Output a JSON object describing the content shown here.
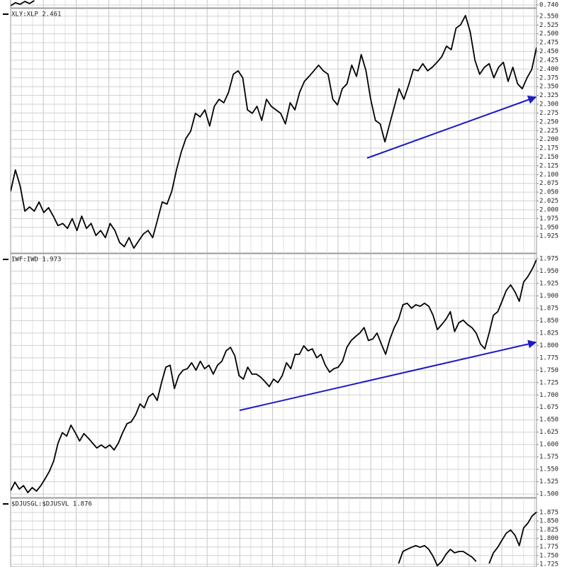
{
  "chart_data": [
    {
      "type": "line",
      "color": "#000000",
      "values": [
        0.7393,
        0.742,
        0.7406,
        0.7433,
        0.7413,
        0.744
      ],
      "ylim": [
        0.7373,
        0.7513
      ],
      "yticks": [
        {
          "value": 0.74,
          "label": "0.740"
        }
      ],
      "grid": true
    },
    {
      "type": "line",
      "title": "XLY:XLP 2.461",
      "color": "#000000",
      "values": [
        2.052,
        2.113,
        2.068,
        1.996,
        2.008,
        1.996,
        2.022,
        1.992,
        2.006,
        1.982,
        1.955,
        1.961,
        1.947,
        1.975,
        1.941,
        1.982,
        1.947,
        1.961,
        1.927,
        1.941,
        1.921,
        1.961,
        1.941,
        1.907,
        1.895,
        1.921,
        1.891,
        1.911,
        1.931,
        1.941,
        1.921,
        1.971,
        2.022,
        2.016,
        2.052,
        2.113,
        2.163,
        2.203,
        2.223,
        2.274,
        2.264,
        2.284,
        2.238,
        2.294,
        2.314,
        2.304,
        2.334,
        2.385,
        2.395,
        2.375,
        2.284,
        2.274,
        2.294,
        2.254,
        2.314,
        2.294,
        2.284,
        2.274,
        2.244,
        2.304,
        2.284,
        2.334,
        2.365,
        2.379,
        2.395,
        2.411,
        2.395,
        2.385,
        2.314,
        2.298,
        2.344,
        2.358,
        2.411,
        2.379,
        2.441,
        2.395,
        2.314,
        2.254,
        2.244,
        2.193,
        2.244,
        2.294,
        2.344,
        2.314,
        2.354,
        2.399,
        2.395,
        2.415,
        2.395,
        2.405,
        2.419,
        2.435,
        2.465,
        2.455,
        2.516,
        2.526,
        2.552,
        2.506,
        2.425,
        2.385,
        2.405,
        2.415,
        2.375,
        2.405,
        2.419,
        2.365,
        2.405,
        2.358,
        2.344,
        2.375,
        2.399,
        2.461
      ],
      "ylim": [
        1.877,
        2.572
      ],
      "yticks": [
        {
          "value": 2.55,
          "label": "2.550"
        },
        {
          "value": 2.525,
          "label": "2.525"
        },
        {
          "value": 2.5,
          "label": "2.500"
        },
        {
          "value": 2.475,
          "label": "2.475"
        },
        {
          "value": 2.45,
          "label": "2.450"
        },
        {
          "value": 2.425,
          "label": "2.425"
        },
        {
          "value": 2.4,
          "label": "2.400"
        },
        {
          "value": 2.375,
          "label": "2.375"
        },
        {
          "value": 2.35,
          "label": "2.350"
        },
        {
          "value": 2.325,
          "label": "2.325"
        },
        {
          "value": 2.3,
          "label": "2.300"
        },
        {
          "value": 2.275,
          "label": "2.275"
        },
        {
          "value": 2.25,
          "label": "2.250"
        },
        {
          "value": 2.225,
          "label": "2.225"
        },
        {
          "value": 2.2,
          "label": "2.200"
        },
        {
          "value": 2.175,
          "label": "2.175"
        },
        {
          "value": 2.15,
          "label": "2.150"
        },
        {
          "value": 2.125,
          "label": "2.125"
        },
        {
          "value": 2.1,
          "label": "2.100"
        },
        {
          "value": 2.075,
          "label": "2.075"
        },
        {
          "value": 2.05,
          "label": "2.050"
        },
        {
          "value": 2.025,
          "label": "2.025"
        },
        {
          "value": 2.0,
          "label": "2.000"
        },
        {
          "value": 1.975,
          "label": "1.975"
        },
        {
          "value": 1.95,
          "label": "1.950"
        },
        {
          "value": 1.925,
          "label": "1.925"
        }
      ],
      "grid": true
    },
    {
      "type": "line",
      "title": "IWF:IWD 1.973",
      "color": "#000000",
      "values": [
        1.507,
        1.524,
        1.51,
        1.517,
        1.503,
        1.513,
        1.506,
        1.517,
        1.531,
        1.546,
        1.567,
        1.603,
        1.624,
        1.617,
        1.639,
        1.624,
        1.607,
        1.622,
        1.613,
        1.603,
        1.593,
        1.599,
        1.593,
        1.599,
        1.589,
        1.603,
        1.624,
        1.642,
        1.646,
        1.66,
        1.682,
        1.674,
        1.696,
        1.703,
        1.689,
        1.725,
        1.756,
        1.76,
        1.713,
        1.739,
        1.75,
        1.753,
        1.765,
        1.75,
        1.768,
        1.753,
        1.76,
        1.742,
        1.76,
        1.768,
        1.789,
        1.796,
        1.779,
        1.739,
        1.732,
        1.756,
        1.742,
        1.742,
        1.736,
        1.727,
        1.717,
        1.732,
        1.725,
        1.739,
        1.765,
        1.753,
        1.782,
        1.782,
        1.799,
        1.789,
        1.793,
        1.775,
        1.782,
        1.76,
        1.746,
        1.753,
        1.756,
        1.768,
        1.796,
        1.81,
        1.818,
        1.825,
        1.836,
        1.81,
        1.813,
        1.825,
        1.803,
        1.782,
        1.813,
        1.836,
        1.853,
        1.882,
        1.885,
        1.875,
        1.882,
        1.879,
        1.885,
        1.879,
        1.861,
        1.832,
        1.842,
        1.853,
        1.868,
        1.828,
        1.846,
        1.851,
        1.842,
        1.836,
        1.825,
        1.803,
        1.793,
        1.825,
        1.861,
        1.868,
        1.889,
        1.911,
        1.922,
        1.908,
        1.889,
        1.928,
        1.939,
        1.954,
        1.973
      ],
      "ylim": [
        1.493,
        1.985
      ],
      "yticks": [
        {
          "value": 1.975,
          "label": "1.975"
        },
        {
          "value": 1.95,
          "label": "1.950"
        },
        {
          "value": 1.925,
          "label": "1.925"
        },
        {
          "value": 1.9,
          "label": "1.900"
        },
        {
          "value": 1.875,
          "label": "1.875"
        },
        {
          "value": 1.85,
          "label": "1.850"
        },
        {
          "value": 1.825,
          "label": "1.825"
        },
        {
          "value": 1.8,
          "label": "1.800"
        },
        {
          "value": 1.775,
          "label": "1.775"
        },
        {
          "value": 1.75,
          "label": "1.750"
        },
        {
          "value": 1.725,
          "label": "1.725"
        },
        {
          "value": 1.7,
          "label": "1.700"
        },
        {
          "value": 1.675,
          "label": "1.675"
        },
        {
          "value": 1.65,
          "label": "1.650"
        },
        {
          "value": 1.625,
          "label": "1.625"
        },
        {
          "value": 1.6,
          "label": "1.600"
        },
        {
          "value": 1.575,
          "label": "1.575"
        },
        {
          "value": 1.55,
          "label": "1.550"
        },
        {
          "value": 1.525,
          "label": "1.525"
        },
        {
          "value": 1.5,
          "label": "1.500"
        }
      ],
      "grid": true
    },
    {
      "type": "line",
      "title": "$DJUSGL:$DJUSVL 1.876",
      "color": "#000000",
      "values": [
        null,
        null,
        null,
        null,
        null,
        null,
        null,
        null,
        null,
        null,
        null,
        null,
        null,
        null,
        null,
        null,
        null,
        null,
        null,
        null,
        null,
        null,
        null,
        null,
        null,
        null,
        null,
        null,
        null,
        null,
        null,
        null,
        null,
        null,
        null,
        null,
        null,
        null,
        null,
        null,
        null,
        null,
        null,
        null,
        null,
        null,
        null,
        null,
        null,
        null,
        null,
        null,
        null,
        null,
        null,
        null,
        null,
        null,
        null,
        null,
        null,
        null,
        null,
        null,
        null,
        null,
        null,
        null,
        null,
        null,
        null,
        null,
        null,
        null,
        null,
        null,
        null,
        null,
        null,
        null,
        null,
        null,
        null,
        null,
        null,
        null,
        null,
        null,
        null,
        null,
        1.727,
        1.762,
        1.768,
        1.774,
        1.779,
        1.774,
        1.779,
        1.768,
        1.748,
        1.721,
        1.733,
        1.754,
        1.768,
        1.758,
        1.762,
        1.762,
        1.754,
        1.746,
        1.733,
        null,
        null,
        1.727,
        1.758,
        1.774,
        1.795,
        1.815,
        1.824,
        1.809,
        1.779,
        1.83,
        1.844,
        1.865,
        1.876
      ],
      "ylim": [
        1.717,
        1.916
      ],
      "yticks": [
        {
          "value": 1.875,
          "label": "1.875"
        },
        {
          "value": 1.85,
          "label": "1.850"
        },
        {
          "value": 1.825,
          "label": "1.825"
        },
        {
          "value": 1.8,
          "label": "1.800"
        },
        {
          "value": 1.775,
          "label": "1.775"
        },
        {
          "value": 1.75,
          "label": "1.750"
        },
        {
          "value": 1.725,
          "label": "1.725"
        }
      ],
      "grid": true
    }
  ]
}
